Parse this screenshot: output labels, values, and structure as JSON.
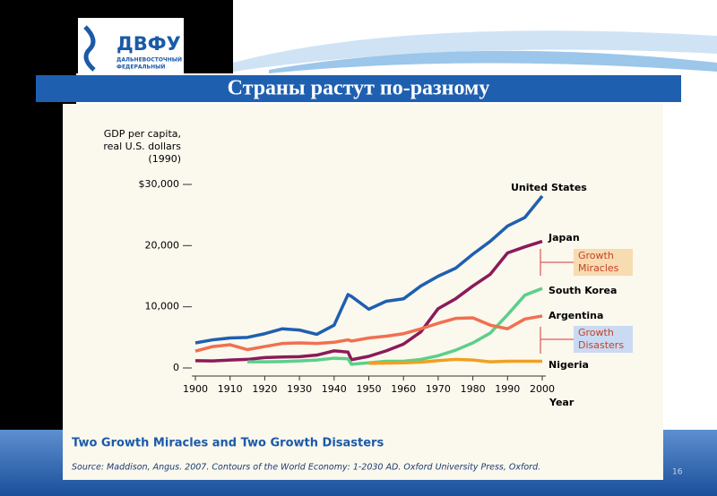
{
  "logo": {
    "mark": "ДВФУ",
    "line1": "ДАЛЬНЕВОСТОЧНЫЙ",
    "line2": "ФЕДЕРАЛЬНЫЙ"
  },
  "slide_title": "Страны растут по-разному",
  "page_number": "16",
  "chart_data": {
    "type": "line",
    "title": "Two Growth Miracles and Two Growth Disasters",
    "source": "Source: Maddison, Angus. 2007. Contours of the World Economy: 1-2030 AD. Oxford University Press, Oxford.",
    "y_label": [
      "GDP per capita,",
      "real U.S. dollars",
      "(1990)"
    ],
    "x_label": "Year",
    "annotations": [
      [
        "Growth",
        "Miracles"
      ],
      [
        "Growth",
        "Disasters"
      ]
    ],
    "x": [
      1900,
      1905,
      1910,
      1915,
      1920,
      1925,
      1930,
      1935,
      1940,
      1944,
      1945,
      1950,
      1955,
      1960,
      1965,
      1970,
      1975,
      1980,
      1985,
      1990,
      1995,
      2000
    ],
    "xlim": [
      1900,
      2000
    ],
    "xticks": [
      1900,
      1910,
      1920,
      1930,
      1940,
      1950,
      1960,
      1970,
      1980,
      1990,
      2000
    ],
    "ylim": [
      0,
      30000
    ],
    "yticks": [
      {
        "value": 30000,
        "label": "$30,000"
      },
      {
        "value": 20000,
        "label": "20,000"
      },
      {
        "value": 10000,
        "label": "10,000"
      },
      0
    ],
    "series": [
      {
        "name": "United States",
        "color": "#1f5fb0",
        "values": [
          4100,
          4600,
          4900,
          5000,
          5600,
          6400,
          6200,
          5500,
          7000,
          12000,
          11700,
          9600,
          10900,
          11300,
          13400,
          15000,
          16300,
          18600,
          20700,
          23200,
          24600,
          28100
        ]
      },
      {
        "name": "Japan",
        "color": "#8b1a5a",
        "values": [
          1180,
          1150,
          1300,
          1400,
          1700,
          1800,
          1850,
          2100,
          2800,
          2600,
          1350,
          1900,
          2800,
          3900,
          5900,
          9700,
          11300,
          13400,
          15300,
          18800,
          19800,
          20700
        ]
      },
      {
        "name": "South Korea",
        "color": "#5ccf8a",
        "values": [
          null,
          null,
          null,
          1000,
          1000,
          1050,
          1150,
          1300,
          1600,
          1500,
          600,
          850,
          1100,
          1100,
          1400,
          2000,
          2900,
          4100,
          5700,
          8700,
          11900,
          13000
        ]
      },
      {
        "name": "Argentina",
        "color": "#f07050",
        "values": [
          2750,
          3500,
          3800,
          3000,
          3500,
          4000,
          4100,
          4000,
          4200,
          4600,
          4400,
          4900,
          5200,
          5600,
          6400,
          7300,
          8100,
          8200,
          7000,
          6400,
          8000,
          8500
        ]
      },
      {
        "name": "Nigeria",
        "color": "#f0a020",
        "values": [
          null,
          null,
          null,
          null,
          null,
          null,
          null,
          null,
          null,
          null,
          null,
          750,
          800,
          850,
          950,
          1200,
          1400,
          1300,
          1000,
          1100,
          1100,
          1100
        ]
      }
    ]
  }
}
